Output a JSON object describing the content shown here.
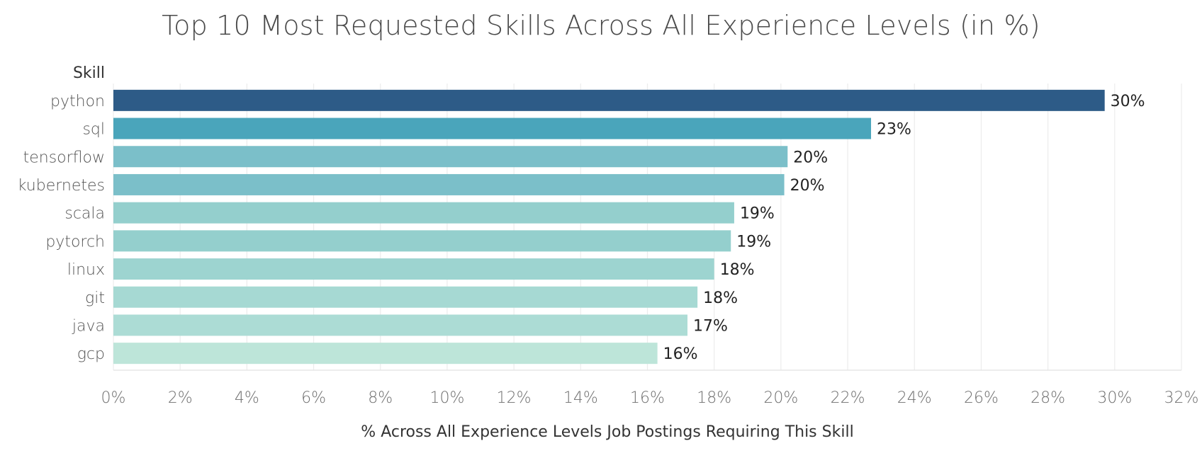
{
  "chart_data": {
    "type": "bar",
    "orientation": "horizontal",
    "title": "Top 10 Most Requested Skills Across All Experience Levels (in %)",
    "ylabel": "Skill",
    "xlabel": "% Across All Experience Levels Job Postings Requiring This Skill",
    "categories": [
      "python",
      "sql",
      "tensorflow",
      "kubernetes",
      "scala",
      "pytorch",
      "linux",
      "git",
      "java",
      "gcp"
    ],
    "values": [
      29.7,
      22.7,
      20.2,
      20.1,
      18.6,
      18.5,
      18.0,
      17.5,
      17.2,
      16.3
    ],
    "value_labels": [
      "30%",
      "23%",
      "20%",
      "20%",
      "19%",
      "19%",
      "18%",
      "18%",
      "17%",
      "16%"
    ],
    "bar_colors": [
      "#2d5b87",
      "#4aa5bb",
      "#7bbfc9",
      "#7bbfc9",
      "#94cfcd",
      "#94cfcd",
      "#9dd4d0",
      "#a6d9d3",
      "#acdcd5",
      "#bde5d9"
    ],
    "xlim": [
      0,
      32
    ],
    "xticks": [
      0,
      2,
      4,
      6,
      8,
      10,
      12,
      14,
      16,
      18,
      20,
      22,
      24,
      26,
      28,
      30,
      32
    ],
    "xtick_labels": [
      "0%",
      "2%",
      "4%",
      "6%",
      "8%",
      "10%",
      "12%",
      "14%",
      "16%",
      "18%",
      "20%",
      "22%",
      "24%",
      "26%",
      "28%",
      "30%",
      "32%"
    ],
    "grid": true,
    "legend": "none"
  }
}
